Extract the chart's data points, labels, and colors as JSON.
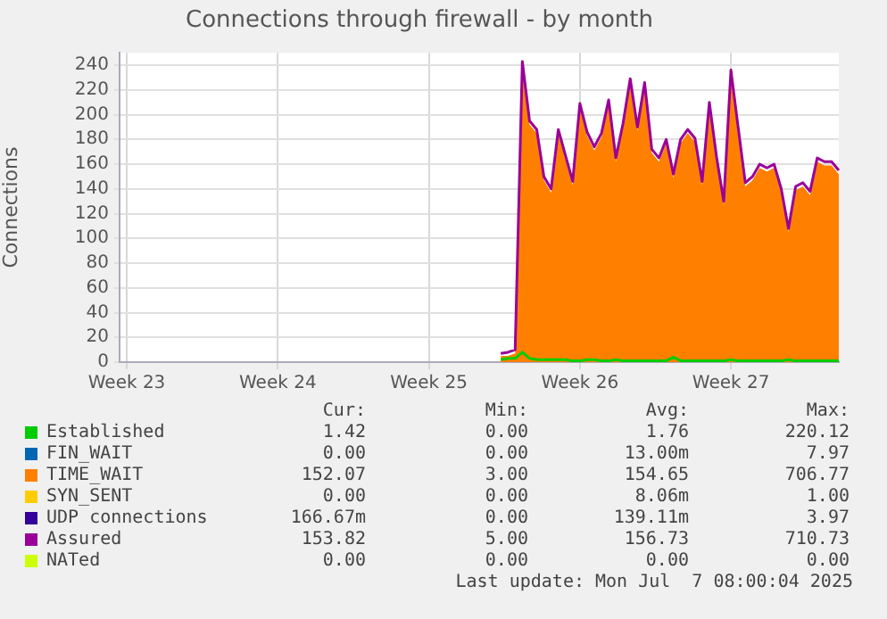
{
  "chart_data": {
    "type": "line",
    "title": "Connections through firewall - by month",
    "ylabel": "Connections",
    "categories": [
      null,
      "Week 23",
      null,
      null,
      null,
      null,
      null,
      null,
      null,
      null,
      null,
      null,
      null,
      null,
      null,
      null,
      null,
      null,
      null,
      null,
      null,
      null,
      "Week 24",
      null,
      null,
      null,
      null,
      null,
      null,
      null,
      null,
      null,
      null,
      null,
      null,
      null,
      null,
      null,
      null,
      null,
      null,
      null,
      null,
      "Week 25",
      null,
      null,
      null,
      null,
      null,
      null,
      null,
      null,
      null,
      null,
      null,
      null,
      null,
      null,
      null,
      null,
      null,
      null,
      null,
      null,
      "Week 26",
      null,
      null,
      null,
      null,
      null,
      null,
      null,
      null,
      null,
      null,
      null,
      null,
      null,
      null,
      null,
      null,
      null,
      null,
      null,
      null,
      "Week 27",
      null,
      null,
      null,
      null,
      null,
      null,
      null,
      null,
      null,
      null,
      null,
      null,
      null,
      null,
      null
    ],
    "ylim": [
      0,
      250
    ],
    "yticks": [
      0,
      20,
      40,
      60,
      80,
      100,
      120,
      140,
      160,
      180,
      200,
      220,
      240
    ],
    "grid": true,
    "legend": "bottom",
    "series": [
      {
        "name": "Established",
        "color": "#00cc00",
        "values": [
          null,
          null,
          null,
          null,
          null,
          null,
          null,
          null,
          null,
          null,
          null,
          null,
          null,
          null,
          null,
          null,
          null,
          null,
          null,
          null,
          null,
          null,
          null,
          null,
          null,
          null,
          null,
          null,
          null,
          null,
          null,
          null,
          null,
          null,
          null,
          null,
          null,
          null,
          null,
          null,
          null,
          null,
          null,
          null,
          null,
          null,
          null,
          null,
          null,
          null,
          null,
          null,
          null,
          2,
          3,
          3,
          8,
          3,
          2,
          2,
          2,
          2,
          2,
          1,
          1,
          2,
          2,
          1,
          1,
          2,
          1,
          1,
          1,
          1,
          1,
          1,
          1,
          4,
          1,
          1,
          1,
          1,
          1,
          1,
          1,
          2,
          1,
          1,
          1,
          1,
          1,
          1,
          1,
          2,
          1,
          1,
          1,
          1,
          1,
          1,
          1
        ]
      },
      {
        "name": "FIN_WAIT",
        "color": "#0066b3",
        "values": [
          null,
          null,
          null,
          null,
          null,
          null,
          null,
          null,
          null,
          null,
          null,
          null,
          null,
          null,
          null,
          null,
          null,
          null,
          null,
          null,
          null,
          null,
          null,
          null,
          null,
          null,
          null,
          null,
          null,
          null,
          null,
          null,
          null,
          null,
          null,
          null,
          null,
          null,
          null,
          null,
          null,
          null,
          null,
          null,
          null,
          null,
          null,
          null,
          null,
          null,
          null,
          null,
          null,
          null,
          null,
          null,
          null,
          null,
          null,
          null,
          null,
          null,
          null,
          null,
          null,
          null,
          null,
          null,
          null,
          null,
          null,
          null,
          null,
          null,
          null,
          null,
          null,
          null,
          null,
          null,
          null,
          null,
          null,
          null,
          null,
          null,
          null,
          null,
          null,
          null,
          null,
          null,
          null,
          null,
          null,
          null,
          null,
          null,
          null,
          null,
          null
        ]
      },
      {
        "name": "TIME_WAIT",
        "color": "#ff8000",
        "type": "area",
        "values": [
          null,
          null,
          null,
          null,
          null,
          null,
          null,
          null,
          null,
          null,
          null,
          null,
          null,
          null,
          null,
          null,
          null,
          null,
          null,
          null,
          null,
          null,
          null,
          null,
          null,
          null,
          null,
          null,
          null,
          null,
          null,
          null,
          null,
          null,
          null,
          null,
          null,
          null,
          null,
          null,
          null,
          null,
          null,
          null,
          null,
          null,
          null,
          null,
          null,
          null,
          null,
          null,
          null,
          5,
          5,
          7,
          240,
          192,
          185,
          147,
          137,
          185,
          164,
          143,
          206,
          183,
          171,
          182,
          209,
          162,
          190,
          226,
          187,
          223,
          169,
          162,
          177,
          149,
          177,
          185,
          178,
          143,
          207,
          163,
          127,
          233,
          187,
          142,
          147,
          157,
          154,
          157,
          137,
          105,
          139,
          142,
          135,
          162,
          159,
          159,
          152
        ]
      },
      {
        "name": "SYN_SENT",
        "color": "#ffcc00",
        "values": [
          null,
          null,
          null,
          null,
          null,
          null,
          null,
          null,
          null,
          null,
          null,
          null,
          null,
          null,
          null,
          null,
          null,
          null,
          null,
          null,
          null,
          null,
          null,
          null,
          null,
          null,
          null,
          null,
          null,
          null,
          null,
          null,
          null,
          null,
          null,
          null,
          null,
          null,
          null,
          null,
          null,
          null,
          null,
          null,
          null,
          null,
          null,
          null,
          null,
          null,
          null,
          null,
          null,
          null,
          null,
          null,
          null,
          null,
          null,
          null,
          null,
          null,
          null,
          null,
          null,
          null,
          null,
          null,
          null,
          null,
          null,
          null,
          null,
          null,
          null,
          null,
          null,
          null,
          null,
          null,
          null,
          null,
          null,
          null,
          null,
          null,
          null,
          null,
          null,
          null,
          null,
          null,
          null,
          null,
          null,
          null,
          null,
          null,
          null,
          null,
          null
        ]
      },
      {
        "name": "UDP connections",
        "color": "#330099",
        "values": [
          null,
          null,
          null,
          null,
          null,
          null,
          null,
          null,
          null,
          null,
          null,
          null,
          null,
          null,
          null,
          null,
          null,
          null,
          null,
          null,
          null,
          null,
          null,
          null,
          null,
          null,
          null,
          null,
          null,
          null,
          null,
          null,
          null,
          null,
          null,
          null,
          null,
          null,
          null,
          null,
          null,
          null,
          null,
          null,
          null,
          null,
          null,
          null,
          null,
          null,
          null,
          null,
          null,
          null,
          null,
          null,
          null,
          null,
          null,
          null,
          null,
          null,
          null,
          null,
          null,
          null,
          null,
          null,
          null,
          null,
          null,
          null,
          null,
          null,
          null,
          null,
          null,
          null,
          null,
          null,
          null,
          null,
          null,
          null,
          null,
          null,
          null,
          null,
          null,
          null,
          null,
          null,
          null,
          null,
          null,
          null,
          null,
          null,
          null,
          null,
          null
        ]
      },
      {
        "name": "Assured",
        "color": "#990099",
        "values": [
          null,
          null,
          null,
          null,
          null,
          null,
          null,
          null,
          null,
          null,
          null,
          null,
          null,
          null,
          null,
          null,
          null,
          null,
          null,
          null,
          null,
          null,
          null,
          null,
          null,
          null,
          null,
          null,
          null,
          null,
          null,
          null,
          null,
          null,
          null,
          null,
          null,
          null,
          null,
          null,
          null,
          null,
          null,
          null,
          null,
          null,
          null,
          null,
          null,
          null,
          null,
          null,
          null,
          7,
          8,
          10,
          243,
          195,
          188,
          150,
          140,
          188,
          167,
          146,
          209,
          186,
          174,
          185,
          212,
          165,
          193,
          229,
          190,
          226,
          172,
          165,
          180,
          152,
          180,
          188,
          181,
          146,
          210,
          166,
          130,
          236,
          190,
          145,
          150,
          160,
          157,
          160,
          140,
          108,
          142,
          145,
          138,
          165,
          162,
          162,
          155
        ]
      },
      {
        "name": "NATed",
        "color": "#ccff00",
        "values": [
          null,
          null,
          null,
          null,
          null,
          null,
          null,
          null,
          null,
          null,
          null,
          null,
          null,
          null,
          null,
          null,
          null,
          null,
          null,
          null,
          null,
          null,
          null,
          null,
          null,
          null,
          null,
          null,
          null,
          null,
          null,
          null,
          null,
          null,
          null,
          null,
          null,
          null,
          null,
          null,
          null,
          null,
          null,
          null,
          null,
          null,
          null,
          null,
          null,
          null,
          null,
          null,
          null,
          null,
          null,
          null,
          null,
          null,
          null,
          null,
          null,
          null,
          null,
          null,
          null,
          null,
          null,
          null,
          null,
          null,
          null,
          null,
          null,
          null,
          null,
          null,
          null,
          null,
          null,
          null,
          null,
          null,
          null,
          null,
          null,
          null,
          null,
          null,
          null,
          null,
          null,
          null,
          null,
          null,
          null,
          null,
          null,
          null,
          null,
          null,
          null
        ]
      }
    ],
    "annotations": [
      "Cur:",
      "Min:",
      "Avg:",
      "Max:",
      "1.42",
      "0.00",
      "1.76",
      "220.12",
      "0.00",
      "0.00",
      "13.00m",
      "7.97",
      "152.07",
      "3.00",
      "154.65",
      "706.77",
      "0.00",
      "0.00",
      "8.06m",
      "1.00",
      "166.67m",
      "0.00",
      "139.11m",
      "3.97",
      "153.82",
      "5.00",
      "156.73",
      "710.73",
      "0.00",
      "0.00",
      "0.00",
      "0.00",
      "Last update: Mon Jul  7 08:00:04 2025"
    ]
  }
}
